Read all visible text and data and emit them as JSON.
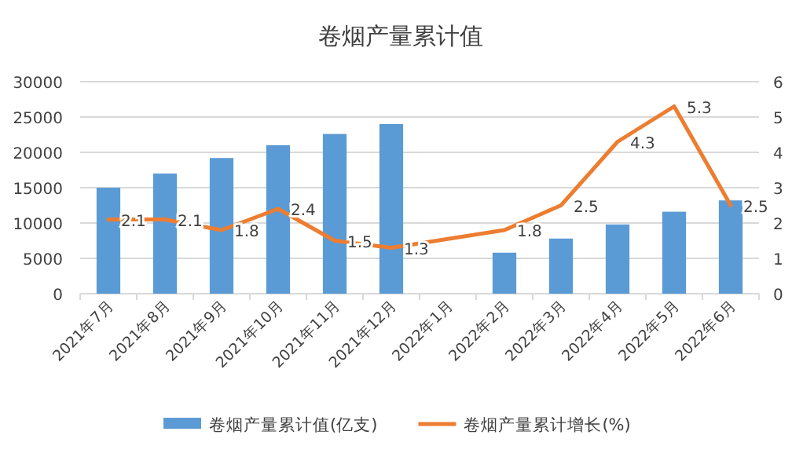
{
  "chart_data": {
    "type": "bar",
    "title": "卷烟产量累计值",
    "categories": [
      "2021年7月",
      "2021年8月",
      "2021年9月",
      "2021年10月",
      "2021年11月",
      "2021年12月",
      "2022年1月",
      "2022年2月",
      "2022年3月",
      "2022年4月",
      "2022年5月",
      "2022年6月"
    ],
    "series": [
      {
        "name": "卷烟产量累计值(亿支)",
        "color": "#5b9bd5",
        "values": [
          15000,
          17000,
          19200,
          21000,
          22600,
          24000,
          null,
          5800,
          7800,
          9800,
          11600,
          13200
        ]
      },
      {
        "name": "卷烟产量累计增长(%)",
        "type": "line",
        "axis": "y2",
        "color": "#ed7d31",
        "values": [
          2.1,
          2.1,
          1.8,
          2.4,
          1.5,
          1.3,
          null,
          1.8,
          2.5,
          4.3,
          5.3,
          2.5
        ],
        "value_labels": [
          "2.1",
          "2.1",
          "1.8",
          "2.4",
          "1.5",
          "1.3",
          null,
          "1.8",
          "2.5",
          "4.3",
          "5.3",
          "2.5"
        ]
      }
    ],
    "ylim": [
      0,
      30000
    ],
    "yticks": [
      0,
      5000,
      10000,
      15000,
      20000,
      25000,
      30000
    ],
    "y2lim": [
      0,
      6
    ],
    "y2ticks": [
      0,
      1,
      2,
      3,
      4,
      5,
      6
    ],
    "grid": "y",
    "legend": "bottom"
  }
}
